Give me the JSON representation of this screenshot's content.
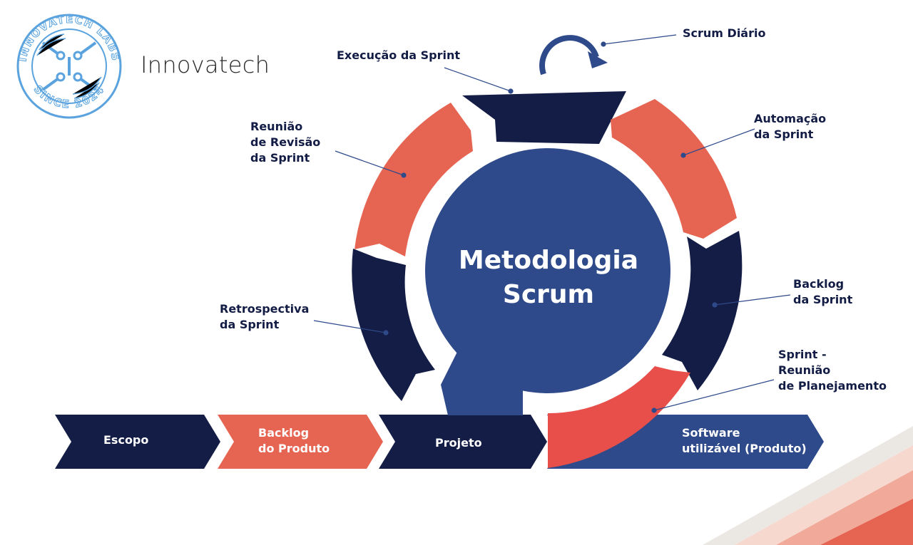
{
  "colors": {
    "navy": "#141d46",
    "coral": "#e66552",
    "red": "#e84f4a",
    "blue": "#2e4a8a",
    "text": "#121c45",
    "logo": "#5aa3de"
  },
  "logo": {
    "ring_text_top": "INNOVATECH LABS",
    "ring_text_bottom": "SINCE 2024",
    "brand_name": "Innovatech"
  },
  "center": {
    "title": "Metodologia\nScrum"
  },
  "cycle_labels": {
    "daily": "Scrum Diário",
    "execution": "Execução da Sprint",
    "automation": "Automação\nda Sprint",
    "review": "Reunião\nde Revisão\nda Sprint",
    "backlog_sprint": "Backlog\nda Sprint",
    "retrospective": "Retrospectiva\nda Sprint",
    "planning": "Sprint -\nReunião\nde Planejamento"
  },
  "process_steps": [
    {
      "label": "Escopo",
      "color": "#141d46"
    },
    {
      "label": "Backlog\ndo Produto",
      "color": "#e66552"
    },
    {
      "label": "Projeto",
      "color": "#141d46"
    },
    {
      "label": "Software\nutilizável (Produto)",
      "color": "#2e4a8a"
    }
  ]
}
